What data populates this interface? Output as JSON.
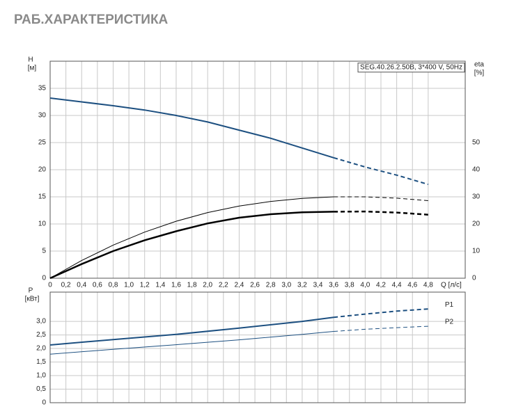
{
  "header": {
    "title": "РАБ.ХАРАКТЕРИСТИКА"
  },
  "chart_data": [
    {
      "type": "line",
      "label": "SEG.40.26.2.50B, 3*400 V, 50Hz",
      "y_label": "H",
      "y_unit": "[м]",
      "y2_label": "eta",
      "y2_unit": "[%]",
      "x_label": "Q [л/с]",
      "x": [
        0,
        0.4,
        0.8,
        1.2,
        1.6,
        2.0,
        2.4,
        2.8,
        3.2,
        3.6,
        4.0,
        4.4,
        4.8
      ],
      "xlim": [
        0,
        5.27
      ],
      "ylim": [
        0,
        40
      ],
      "y2lim": [
        0,
        80
      ],
      "xticks": [
        0,
        {
          "value": 0.2,
          "label": "0,2"
        },
        {
          "value": 0.4,
          "label": "0,4"
        },
        {
          "value": 0.6,
          "label": "0,6"
        },
        {
          "value": 0.8,
          "label": "0,8"
        },
        {
          "value": 1.0,
          "label": "1,0"
        },
        {
          "value": 1.2,
          "label": "1,2"
        },
        {
          "value": 1.4,
          "label": "1,4"
        },
        {
          "value": 1.6,
          "label": "1,6"
        },
        {
          "value": 1.8,
          "label": "1,8"
        },
        {
          "value": 2.0,
          "label": "2,0"
        },
        {
          "value": 2.2,
          "label": "2,2"
        },
        {
          "value": 2.4,
          "label": "2,4"
        },
        {
          "value": 2.6,
          "label": "2,6"
        },
        {
          "value": 2.8,
          "label": "2,8"
        },
        {
          "value": 3.0,
          "label": "3,0"
        },
        {
          "value": 3.2,
          "label": "3,2"
        },
        {
          "value": 3.4,
          "label": "3,4"
        },
        {
          "value": 3.6,
          "label": "3,6"
        },
        {
          "value": 3.8,
          "label": "3,8"
        },
        {
          "value": 4.0,
          "label": "4,0"
        },
        {
          "value": 4.2,
          "label": "4,2"
        },
        {
          "value": 4.4,
          "label": "4,4"
        },
        {
          "value": 4.6,
          "label": "4,6"
        },
        {
          "value": 4.8,
          "label": "4,8"
        }
      ],
      "yticks": [
        0,
        5,
        10,
        15,
        20,
        25,
        30,
        35
      ],
      "y2ticks": [
        0,
        10,
        20,
        30,
        40,
        50
      ],
      "grid": true,
      "series": [
        {
          "color": "#1c4f80",
          "width": 2,
          "values": [
            33.2,
            32.5,
            31.8,
            31.0,
            30.0,
            28.8,
            27.3,
            25.8,
            24.0,
            22.2,
            20.5,
            19.0,
            17.3
          ],
          "dashed": [
            false,
            false,
            false,
            false,
            false,
            false,
            false,
            false,
            false,
            false,
            true,
            true,
            true
          ]
        },
        {
          "color": "#000000",
          "width": 1,
          "axis": "y2",
          "values": [
            0,
            6.5,
            12.2,
            17,
            21,
            24.2,
            26.6,
            28.3,
            29.4,
            30.0,
            30.0,
            29.5,
            28.6
          ],
          "dashed": [
            false,
            false,
            false,
            false,
            false,
            false,
            false,
            false,
            false,
            false,
            true,
            true,
            true
          ]
        },
        {
          "color": "#000000",
          "width": 2.5,
          "axis": "y2",
          "values": [
            0,
            5.2,
            10,
            14,
            17.3,
            20.2,
            22.3,
            23.6,
            24.3,
            24.5,
            24.6,
            24.2,
            23.4
          ],
          "dashed": [
            false,
            false,
            false,
            false,
            false,
            false,
            false,
            false,
            false,
            false,
            true,
            true,
            true
          ]
        }
      ]
    },
    {
      "type": "line",
      "y_label": "P",
      "y_unit": "[кВт]",
      "x": [
        0,
        0.8,
        1.6,
        2.4,
        3.2,
        3.6,
        4.0,
        4.4,
        4.8
      ],
      "xlim": [
        0,
        5.27
      ],
      "ylim": [
        0,
        4.08
      ],
      "yticks": [
        0,
        {
          "value": 0.5,
          "label": "0,5"
        },
        {
          "value": 1.0,
          "label": "1,0"
        },
        {
          "value": 1.5,
          "label": "1,5"
        },
        {
          "value": 2.0,
          "label": "2,0"
        },
        {
          "value": 2.5,
          "label": "2,5"
        },
        {
          "value": 3.0,
          "label": "3,0"
        }
      ],
      "grid": true,
      "series": [
        {
          "name": "P1",
          "color": "#1c4f80",
          "width": 2,
          "values": [
            2.13,
            2.33,
            2.52,
            2.75,
            3.0,
            3.15,
            3.27,
            3.38,
            3.46
          ],
          "dashed": [
            false,
            false,
            false,
            false,
            false,
            false,
            true,
            true,
            true
          ]
        },
        {
          "name": "P2",
          "color": "#1c4f80",
          "width": 1,
          "values": [
            1.79,
            1.97,
            2.14,
            2.32,
            2.52,
            2.63,
            2.71,
            2.77,
            2.82
          ],
          "dashed": [
            false,
            false,
            false,
            false,
            false,
            false,
            true,
            true,
            true
          ]
        }
      ]
    }
  ]
}
